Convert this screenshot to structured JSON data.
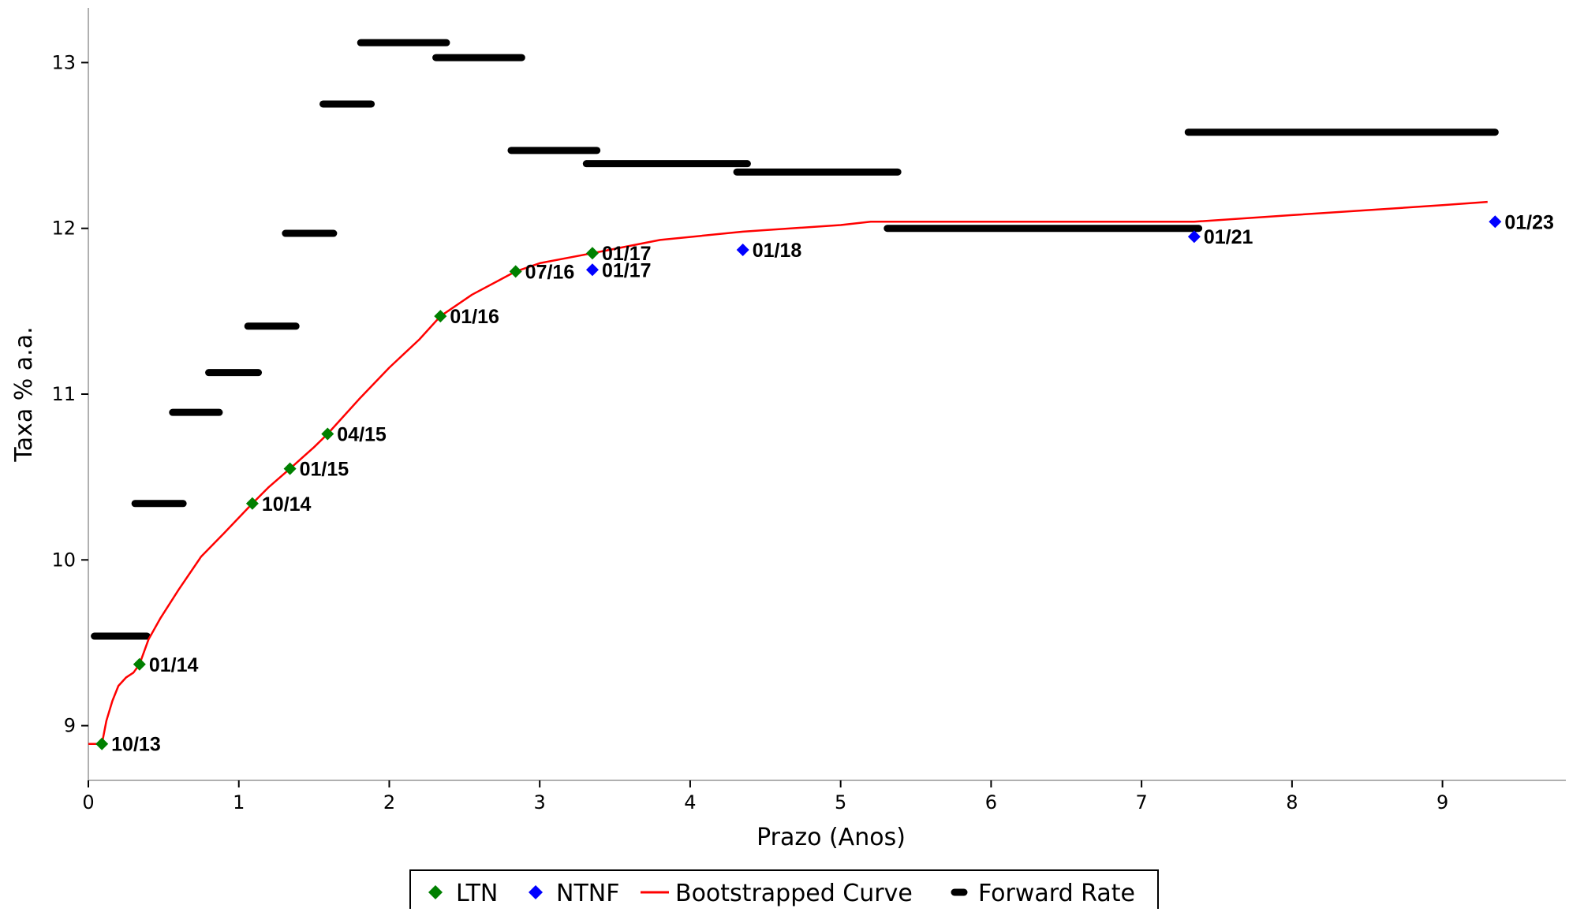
{
  "chart_data": {
    "type": "scatter",
    "xlabel": "Prazo (Anos)",
    "ylabel": "Taxa % a.a.",
    "xlim": [
      0,
      9.82
    ],
    "ylim": [
      8.67,
      13.33
    ],
    "xticks": [
      0,
      1,
      2,
      3,
      4,
      5,
      6,
      7,
      8,
      9
    ],
    "yticks": [
      9,
      10,
      11,
      12,
      13
    ],
    "grid": false,
    "legend_position": "bottom-center",
    "colors": {
      "LTN": "#008000",
      "NTNF": "#0000ff",
      "Bootstrapped Curve": "#ff0000",
      "Forward Rate": "#000000"
    },
    "legend": [
      "LTN",
      "NTNF",
      "Bootstrapped Curve",
      "Forward Rate"
    ],
    "series": [
      {
        "name": "LTN",
        "marker": "diamond",
        "points": [
          {
            "x": 0.09,
            "y": 8.89,
            "label": "10/13"
          },
          {
            "x": 0.34,
            "y": 9.37,
            "label": "01/14"
          },
          {
            "x": 1.09,
            "y": 10.34,
            "label": "10/14"
          },
          {
            "x": 1.34,
            "y": 10.55,
            "label": "01/15"
          },
          {
            "x": 1.59,
            "y": 10.76,
            "label": "04/15"
          },
          {
            "x": 2.34,
            "y": 11.47,
            "label": "01/16"
          },
          {
            "x": 2.84,
            "y": 11.74,
            "label": "07/16"
          },
          {
            "x": 3.35,
            "y": 11.85,
            "label": "01/17"
          }
        ]
      },
      {
        "name": "NTNF",
        "marker": "diamond",
        "points": [
          {
            "x": 3.35,
            "y": 11.75,
            "label": "01/17"
          },
          {
            "x": 4.35,
            "y": 11.87,
            "label": "01/18"
          },
          {
            "x": 7.35,
            "y": 11.95,
            "label": "01/21"
          },
          {
            "x": 9.35,
            "y": 12.04,
            "label": "01/23"
          }
        ]
      },
      {
        "name": "Bootstrapped Curve",
        "marker": "line",
        "x": [
          0.0,
          0.09,
          0.12,
          0.16,
          0.2,
          0.25,
          0.3,
          0.34,
          0.4,
          0.48,
          0.6,
          0.75,
          0.9,
          1.09,
          1.2,
          1.34,
          1.5,
          1.59,
          1.8,
          2.0,
          2.2,
          2.34,
          2.55,
          2.84,
          3.0,
          3.35,
          3.8,
          4.35,
          5.0,
          5.2,
          5.3,
          7.35,
          8.0,
          8.5,
          9.0,
          9.3
        ],
        "y": [
          8.89,
          8.89,
          9.03,
          9.15,
          9.24,
          9.29,
          9.32,
          9.37,
          9.52,
          9.65,
          9.82,
          10.02,
          10.16,
          10.34,
          10.44,
          10.55,
          10.68,
          10.76,
          10.97,
          11.16,
          11.33,
          11.47,
          11.6,
          11.74,
          11.79,
          11.85,
          11.93,
          11.98,
          12.02,
          12.04,
          12.04,
          12.04,
          12.08,
          12.11,
          12.14,
          12.16
        ]
      },
      {
        "name": "Forward Rate",
        "marker": "segment",
        "segments": [
          {
            "x0": 0.04,
            "x1": 0.39,
            "y": 9.54
          },
          {
            "x0": 0.31,
            "x1": 0.63,
            "y": 10.34
          },
          {
            "x0": 0.56,
            "x1": 0.87,
            "y": 10.89
          },
          {
            "x0": 0.8,
            "x1": 1.13,
            "y": 11.13
          },
          {
            "x0": 1.06,
            "x1": 1.38,
            "y": 11.41
          },
          {
            "x0": 1.31,
            "x1": 1.63,
            "y": 11.97
          },
          {
            "x0": 1.56,
            "x1": 1.88,
            "y": 12.75
          },
          {
            "x0": 1.81,
            "x1": 2.38,
            "y": 13.12
          },
          {
            "x0": 2.31,
            "x1": 2.88,
            "y": 13.03
          },
          {
            "x0": 2.81,
            "x1": 3.38,
            "y": 12.47
          },
          {
            "x0": 3.31,
            "x1": 4.38,
            "y": 12.39
          },
          {
            "x0": 4.31,
            "x1": 5.38,
            "y": 12.34
          },
          {
            "x0": 5.31,
            "x1": 7.38,
            "y": 12.0
          },
          {
            "x0": 7.31,
            "x1": 9.35,
            "y": 12.58
          }
        ]
      }
    ]
  }
}
